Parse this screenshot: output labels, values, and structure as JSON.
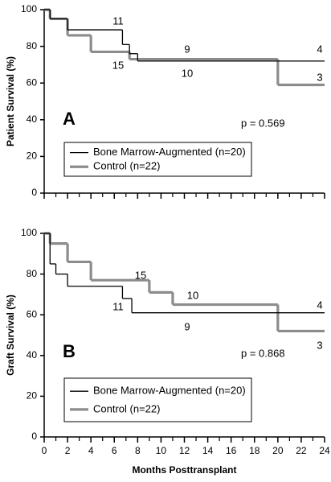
{
  "chart_data": [
    {
      "type": "line",
      "step": true,
      "panel_label": "A",
      "ylabel": "Patient Survival (%)",
      "p_value_text": "p = 0.569",
      "xlim": [
        0,
        24
      ],
      "xticks": [
        0,
        2,
        4,
        6,
        8,
        10,
        12,
        14,
        16,
        18,
        20,
        22,
        24
      ],
      "xtick_labels": false,
      "ylim": [
        0,
        100
      ],
      "yticks": [
        0,
        20,
        40,
        60,
        80,
        100
      ],
      "series": [
        {
          "name": "Bone Marrow-Augmented (n=20)",
          "color": "#000000",
          "x": [
            0,
            0.5,
            2,
            6.7,
            7.3,
            8
          ],
          "values": [
            100,
            95,
            89,
            81,
            76,
            72
          ]
        },
        {
          "name": "Control (n=22)",
          "color": "#8c8c8c",
          "x": [
            0,
            0.5,
            2,
            4,
            7.3,
            20
          ],
          "values": [
            100,
            95,
            86,
            77,
            73,
            59
          ]
        }
      ],
      "annotations": [
        "11",
        "15",
        "9",
        "10",
        "4",
        "3"
      ]
    },
    {
      "type": "line",
      "step": true,
      "panel_label": "B",
      "ylabel": "Graft Survival (%)",
      "xlabel": "Months Posttransplant",
      "p_value_text": "p = 0.868",
      "xlim": [
        0,
        24
      ],
      "xticks": [
        0,
        2,
        4,
        6,
        8,
        10,
        12,
        14,
        16,
        18,
        20,
        22,
        24
      ],
      "xtick_labels": true,
      "ylim": [
        0,
        100
      ],
      "yticks": [
        0,
        20,
        40,
        60,
        80,
        100
      ],
      "series": [
        {
          "name": "Bone Marrow-Augmented (n=20)",
          "color": "#000000",
          "x": [
            0,
            0.5,
            1,
            2,
            6.7,
            7.5
          ],
          "values": [
            100,
            85,
            80,
            74,
            68,
            61
          ]
        },
        {
          "name": "Control (n=22)",
          "color": "#8c8c8c",
          "x": [
            0,
            0.5,
            2,
            4,
            9,
            11,
            20
          ],
          "values": [
            100,
            95,
            86,
            77,
            71,
            65,
            52
          ]
        }
      ],
      "annotations": [
        "15",
        "11",
        "10",
        "9",
        "4",
        "3"
      ]
    }
  ]
}
